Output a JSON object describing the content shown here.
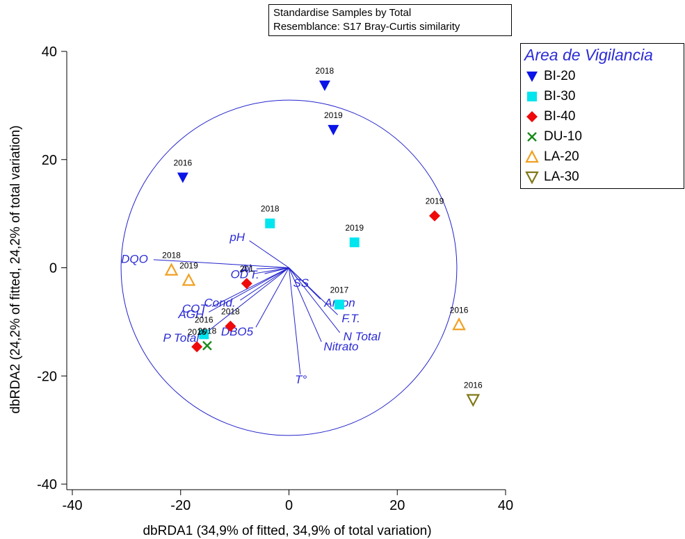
{
  "header": {
    "line1": "Standardise Samples by Total",
    "line2": "Resemblance: S17 Bray-Curtis similarity"
  },
  "chart_data": {
    "type": "scatter",
    "xlabel": "dbRDA1 (34,9% of fitted, 34,9% of total variation)",
    "ylabel": "dbRDA2 (24,2% of fitted, 24,2% of total variation)",
    "xlim": [
      -40,
      40
    ],
    "ylim": [
      -40,
      40
    ],
    "xticks": [
      "-40",
      "-20",
      "0",
      "20",
      "40"
    ],
    "yticks": [
      "-40",
      "-20",
      "0",
      "20",
      "40"
    ],
    "grid": false,
    "legend_title": "Area de Vigilancia",
    "legend_position": "top-right",
    "series": [
      {
        "name": "BI-20",
        "marker": "triangle-down-filled",
        "color": "#0a14e6",
        "points": [
          {
            "x": 6.6,
            "y": 33.7,
            "label": "2018"
          },
          {
            "x": 8.2,
            "y": 25.5,
            "label": "2019"
          },
          {
            "x": -19.6,
            "y": 16.7,
            "label": "2016"
          }
        ]
      },
      {
        "name": "BI-30",
        "marker": "square-filled",
        "color": "#00e5ee",
        "points": [
          {
            "x": -3.5,
            "y": 8.2,
            "label": "2018"
          },
          {
            "x": 12.1,
            "y": 4.7,
            "label": "2019"
          },
          {
            "x": 9.3,
            "y": -6.8,
            "label": "2017"
          },
          {
            "x": -15.7,
            "y": -12.3,
            "label": "2016"
          }
        ]
      },
      {
        "name": "BI-40",
        "marker": "diamond-filled",
        "color": "#ee0a0a",
        "points": [
          {
            "x": 26.9,
            "y": 9.6,
            "label": "2019"
          },
          {
            "x": -7.8,
            "y": -2.9,
            "label": "201"
          },
          {
            "x": -10.8,
            "y": -10.8,
            "label": "2018"
          },
          {
            "x": -17.0,
            "y": -14.6,
            "label": "2016"
          }
        ]
      },
      {
        "name": "DU-10",
        "marker": "x",
        "color": "#1a8a1a",
        "points": [
          {
            "x": -15.1,
            "y": -14.4,
            "label": "2018"
          }
        ]
      },
      {
        "name": "LA-20",
        "marker": "triangle-up-open",
        "color": "#f0a020",
        "points": [
          {
            "x": -21.7,
            "y": -0.4,
            "label": "2018"
          },
          {
            "x": -18.5,
            "y": -2.3,
            "label": "2019"
          },
          {
            "x": 31.4,
            "y": -10.5,
            "label": "2016"
          }
        ]
      },
      {
        "name": "LA-30",
        "marker": "triangle-down-open",
        "color": "#807818",
        "points": [
          {
            "x": 34.0,
            "y": -24.4,
            "label": "2016"
          }
        ]
      }
    ],
    "correlation_circle": {
      "center": [
        0,
        0
      ],
      "radius": 31
    },
    "vectors": [
      {
        "name": "DQO",
        "x": -25.0,
        "y": 1.5
      },
      {
        "name": "pH",
        "x": -7.3,
        "y": 5.0
      },
      {
        "name": "Al",
        "x": -6.0,
        "y": -0.2
      },
      {
        "name": "OD",
        "x": -6.5,
        "y": -1.1
      },
      {
        "name": "T.",
        "x": -4.5,
        "y": -1.1
      },
      {
        "name": "SS",
        "x": 1.6,
        "y": -2.1
      },
      {
        "name": "Amon",
        "x": 5.8,
        "y": -5.8
      },
      {
        "name": "F.T.",
        "x": 9.0,
        "y": -8.7
      },
      {
        "name": "N Total",
        "x": 9.4,
        "y": -12.0
      },
      {
        "name": "Nitrato",
        "x": 6.0,
        "y": -13.7
      },
      {
        "name": "T°",
        "x": 2.1,
        "y": -19.7
      },
      {
        "name": "Cond.",
        "x": -9.0,
        "y": -6.0
      },
      {
        "name": "COT",
        "x": -14.2,
        "y": -7.2
      },
      {
        "name": "AGH",
        "x": -14.8,
        "y": -8.2
      },
      {
        "name": "DBO5",
        "x": -6.1,
        "y": -11.0
      },
      {
        "name": "P Total",
        "x": -15.8,
        "y": -12.4
      }
    ]
  }
}
